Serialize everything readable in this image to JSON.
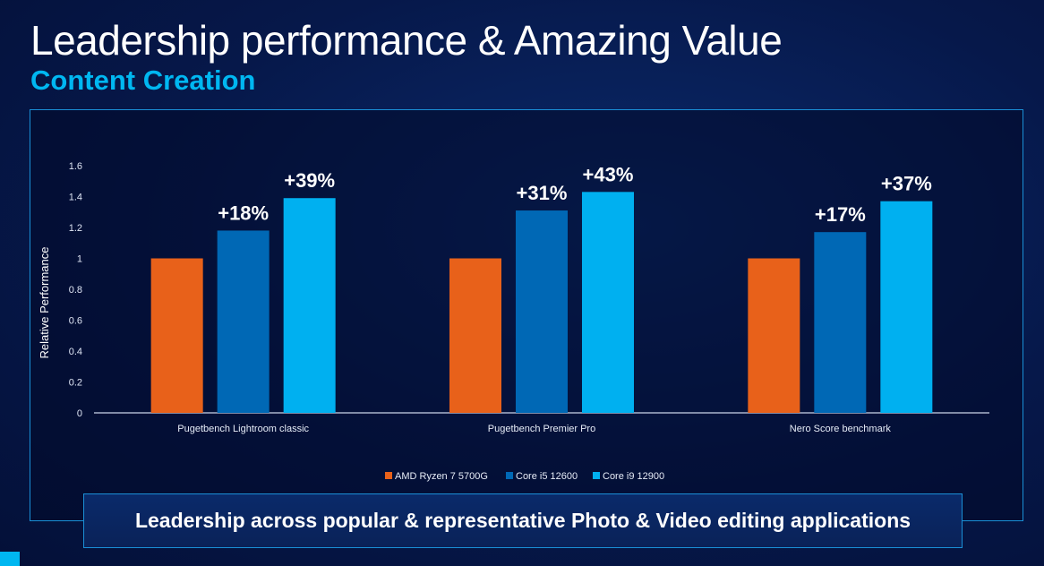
{
  "title": "Leadership performance & Amazing Value",
  "subtitle": "Content Creation",
  "banner": "Leadership across popular & representative Photo & Video editing applications",
  "chart_data": {
    "type": "bar",
    "ylabel": "Relative Performance",
    "ylim": [
      0,
      1.6
    ],
    "yticks": [
      "0",
      "0.2",
      "0.4",
      "0.6",
      "0.8",
      "1",
      "1.2",
      "1.4",
      "1.6"
    ],
    "categories": [
      "Pugetbench Lightroom classic",
      "Pugetbench Premier Pro",
      "Nero Score benchmark"
    ],
    "series": [
      {
        "name": "AMD Ryzen 7 5700G",
        "color": "#e8611a",
        "values": [
          1,
          1,
          1
        ],
        "labels": [
          "",
          "",
          ""
        ]
      },
      {
        "name": "Core i5 12600",
        "color": "#0068b5",
        "values": [
          1.18,
          1.31,
          1.17
        ],
        "labels": [
          "+18%",
          "+31%",
          "+17%"
        ]
      },
      {
        "name": "Core i9 12900",
        "color": "#00b0f0",
        "values": [
          1.39,
          1.43,
          1.37
        ],
        "labels": [
          "+39%",
          "+43%",
          "+37%"
        ]
      }
    ],
    "legend": "bottom-center",
    "grid": false
  }
}
